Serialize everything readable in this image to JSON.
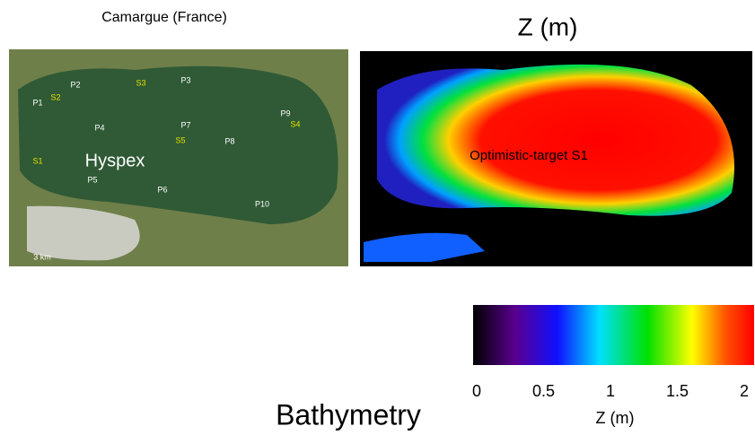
{
  "left_panel": {
    "title": "Camargue (France)",
    "sensor": "Hyspex",
    "scale": "3 km",
    "points": [
      {
        "label": "P1",
        "color": "#ffffff"
      },
      {
        "label": "S2",
        "color": "#e8e000"
      },
      {
        "label": "P2",
        "color": "#ffffff"
      },
      {
        "label": "S3",
        "color": "#e8e000"
      },
      {
        "label": "P3",
        "color": "#ffffff"
      },
      {
        "label": "P9",
        "color": "#ffffff"
      },
      {
        "label": "S4",
        "color": "#e8e000"
      },
      {
        "label": "P4",
        "color": "#ffffff"
      },
      {
        "label": "P7",
        "color": "#ffffff"
      },
      {
        "label": "S5",
        "color": "#e8e000"
      },
      {
        "label": "P8",
        "color": "#ffffff"
      },
      {
        "label": "S1",
        "color": "#e8e000"
      },
      {
        "label": "P5",
        "color": "#ffffff"
      },
      {
        "label": "P6",
        "color": "#ffffff"
      },
      {
        "label": "P10",
        "color": "#ffffff"
      }
    ]
  },
  "right_panel": {
    "title": "Z (m)",
    "annotation": "Optimistic-target S1"
  },
  "colorbar": {
    "lim": [
      0,
      2
    ],
    "ticks": [
      0,
      0.5,
      1,
      1.5,
      2
    ],
    "label": "Z (m)"
  },
  "caption": "Bathymetry"
}
